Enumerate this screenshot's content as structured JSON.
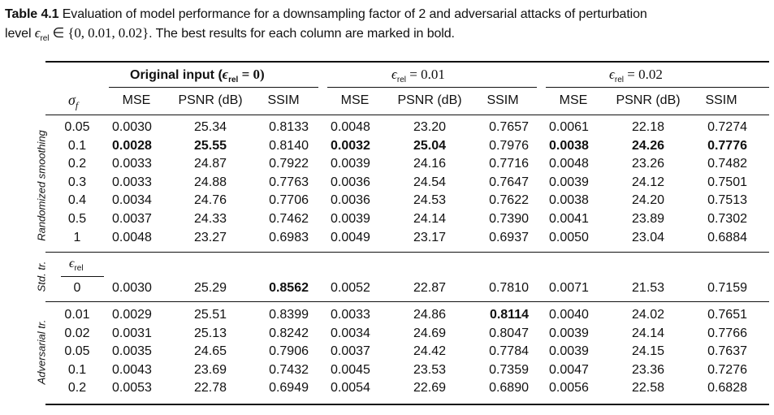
{
  "caption": {
    "label": "Table 4.1",
    "text_a": " Evaluation of model performance for a downsampling factor of 2 and adversarial attacks of perturbation",
    "text_b": "level ",
    "eps_sym": "ϵ",
    "eps_sub": "rel",
    "set": " ∈ {0, 0.01, 0.02}",
    "text_c": ". The best results for each column are marked in bold."
  },
  "header": {
    "group1": {
      "label": "Original input (",
      "eps": "ϵ",
      "sub": "rel",
      "eq": " = 0)"
    },
    "group2": {
      "eps": "ϵ",
      "sub": "rel",
      "eq": " = 0.01"
    },
    "group3": {
      "eps": "ϵ",
      "sub": "rel",
      "eq": " = 0.02"
    },
    "sigma": "σ",
    "sigma_sub": "f",
    "metrics": [
      "MSE",
      "PSNR (dB)",
      "SSIM",
      "MSE",
      "PSNR (dB)",
      "SSIM",
      "MSE",
      "PSNR (dB)",
      "SSIM"
    ]
  },
  "sections": [
    {
      "name": "Randomized smoothing",
      "rows": [
        [
          "0.05",
          "0.0030",
          "25.34",
          "0.8133",
          "0.0048",
          "23.20",
          "0.7657",
          "0.0061",
          "22.18",
          "0.7274"
        ],
        [
          "0.1",
          "0.0028",
          "25.55",
          "0.8140",
          "0.0032",
          "25.04",
          "0.7976",
          "0.0038",
          "24.26",
          "0.7776"
        ],
        [
          "0.2",
          "0.0033",
          "24.87",
          "0.7922",
          "0.0039",
          "24.16",
          "0.7716",
          "0.0048",
          "23.26",
          "0.7482"
        ],
        [
          "0.3",
          "0.0033",
          "24.88",
          "0.7763",
          "0.0036",
          "24.54",
          "0.7647",
          "0.0039",
          "24.12",
          "0.7501"
        ],
        [
          "0.4",
          "0.0034",
          "24.76",
          "0.7706",
          "0.0036",
          "24.53",
          "0.7622",
          "0.0038",
          "24.20",
          "0.7513"
        ],
        [
          "0.5",
          "0.0037",
          "24.33",
          "0.7462",
          "0.0039",
          "24.14",
          "0.7390",
          "0.0041",
          "23.89",
          "0.7302"
        ],
        [
          "1",
          "0.0048",
          "23.27",
          "0.6983",
          "0.0049",
          "23.17",
          "0.6937",
          "0.0050",
          "23.04",
          "0.6884"
        ]
      ]
    },
    {
      "name": "Std. tr.",
      "eps_header": "ϵ",
      "eps_sub": "rel",
      "rows": [
        [
          "0",
          "0.0030",
          "25.29",
          "0.8562",
          "0.0052",
          "22.87",
          "0.7810",
          "0.0071",
          "21.53",
          "0.7159"
        ]
      ]
    },
    {
      "name": "Adversarial tr.",
      "rows": [
        [
          "0.01",
          "0.0029",
          "25.51",
          "0.8399",
          "0.0033",
          "24.86",
          "0.8114",
          "0.0040",
          "24.02",
          "0.7651"
        ],
        [
          "0.02",
          "0.0031",
          "25.13",
          "0.8242",
          "0.0034",
          "24.69",
          "0.8047",
          "0.0039",
          "24.14",
          "0.7766"
        ],
        [
          "0.05",
          "0.0035",
          "24.65",
          "0.7906",
          "0.0037",
          "24.42",
          "0.7784",
          "0.0039",
          "24.15",
          "0.7637"
        ],
        [
          "0.1",
          "0.0043",
          "23.69",
          "0.7432",
          "0.0045",
          "23.53",
          "0.7359",
          "0.0047",
          "23.36",
          "0.7276"
        ],
        [
          "0.2",
          "0.0053",
          "22.78",
          "0.6949",
          "0.0054",
          "22.69",
          "0.6890",
          "0.0056",
          "22.58",
          "0.6828"
        ]
      ]
    }
  ],
  "bold_cells": [
    [
      0,
      1,
      1
    ],
    [
      0,
      1,
      2
    ],
    [
      0,
      1,
      4
    ],
    [
      0,
      1,
      5
    ],
    [
      0,
      1,
      7
    ],
    [
      0,
      1,
      8
    ],
    [
      0,
      1,
      9
    ],
    [
      1,
      0,
      3
    ],
    [
      2,
      0,
      6
    ]
  ]
}
